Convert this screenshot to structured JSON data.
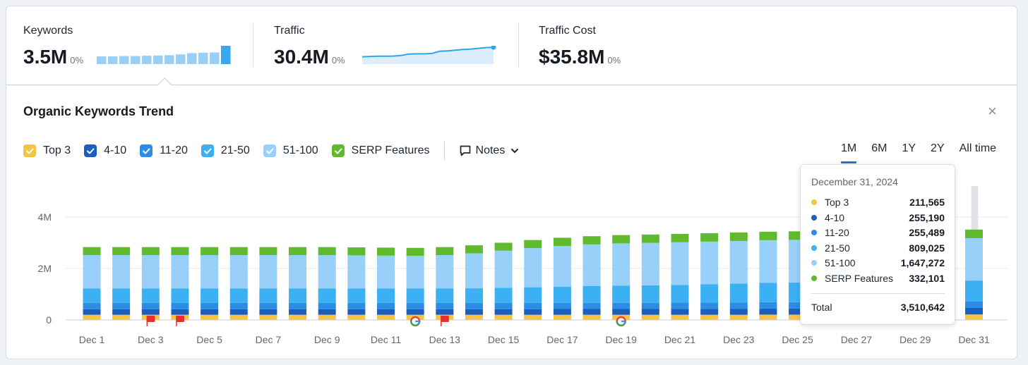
{
  "metrics": [
    {
      "label": "Keywords",
      "value": "3.5M",
      "change": "0%"
    },
    {
      "label": "Traffic",
      "value": "30.4M",
      "change": "0%"
    },
    {
      "label": "Traffic Cost",
      "value": "$35.8M",
      "change": "0%"
    }
  ],
  "section_title": "Organic Keywords Trend",
  "close_glyph": "×",
  "legend": [
    {
      "label": "Top 3",
      "color": "#f6c443"
    },
    {
      "label": "4-10",
      "color": "#1a5fbf"
    },
    {
      "label": "11-20",
      "color": "#2d8ce6"
    },
    {
      "label": "21-50",
      "color": "#3bb0f2"
    },
    {
      "label": "51-100",
      "color": "#99d0fa"
    },
    {
      "label": "SERP Features",
      "color": "#5fba2e"
    }
  ],
  "notes_label": "Notes",
  "periods": [
    "1M",
    "6M",
    "1Y",
    "2Y",
    "All time"
  ],
  "active_period": "1M",
  "tooltip": {
    "date": "December 31, 2024",
    "rows": [
      {
        "label": "Top 3",
        "value": "211,565",
        "color": "#f6c443"
      },
      {
        "label": "4-10",
        "value": "255,190",
        "color": "#1a5fbf"
      },
      {
        "label": "11-20",
        "value": "255,489",
        "color": "#2d8ce6"
      },
      {
        "label": "21-50",
        "value": "809,025",
        "color": "#3bb0f2"
      },
      {
        "label": "51-100",
        "value": "1,647,272",
        "color": "#99d0fa"
      },
      {
        "label": "SERP Features",
        "value": "332,101",
        "color": "#5fba2e"
      }
    ],
    "total_label": "Total",
    "total_value": "3,510,642"
  },
  "chart_data": {
    "type": "bar",
    "stacked": true,
    "x": [
      "Dec 1",
      "Dec 2",
      "Dec 3",
      "Dec 4",
      "Dec 5",
      "Dec 6",
      "Dec 7",
      "Dec 8",
      "Dec 9",
      "Dec 10",
      "Dec 11",
      "Dec 12",
      "Dec 13",
      "Dec 14",
      "Dec 15",
      "Dec 16",
      "Dec 17",
      "Dec 18",
      "Dec 19",
      "Dec 20",
      "Dec 21",
      "Dec 22",
      "Dec 23",
      "Dec 24",
      "Dec 25",
      "Dec 26",
      "Dec 27",
      "Dec 28",
      "Dec 29",
      "Dec 30",
      "Dec 31"
    ],
    "x_tick_labels": [
      "Dec 1",
      "Dec 3",
      "Dec 5",
      "Dec 7",
      "Dec 9",
      "Dec 11",
      "Dec 13",
      "Dec 15",
      "Dec 17",
      "Dec 19",
      "Dec 21",
      "Dec 23",
      "Dec 25",
      "Dec 27",
      "Dec 29",
      "Dec 31"
    ],
    "y_tick_labels": [
      "0",
      "2M",
      "4M"
    ],
    "ylim": [
      0,
      4000000
    ],
    "grid": true,
    "series": [
      {
        "name": "Top 3",
        "color": "#f6c443",
        "values": [
          200000,
          200000,
          200000,
          200000,
          200000,
          200000,
          200000,
          200000,
          200000,
          200000,
          200000,
          200000,
          200000,
          200000,
          200000,
          200000,
          200000,
          200000,
          200000,
          200000,
          200000,
          200000,
          200000,
          205000,
          205000,
          205000,
          205000,
          208000,
          210000,
          210000,
          211565
        ]
      },
      {
        "name": "4-10",
        "color": "#1a5fbf",
        "values": [
          220000,
          220000,
          220000,
          220000,
          220000,
          220000,
          220000,
          220000,
          220000,
          220000,
          220000,
          220000,
          220000,
          220000,
          220000,
          220000,
          225000,
          225000,
          225000,
          225000,
          230000,
          230000,
          235000,
          240000,
          240000,
          245000,
          245000,
          250000,
          250000,
          252000,
          255190
        ]
      },
      {
        "name": "11-20",
        "color": "#2d8ce6",
        "values": [
          240000,
          240000,
          240000,
          240000,
          240000,
          240000,
          240000,
          240000,
          240000,
          240000,
          240000,
          240000,
          240000,
          240000,
          240000,
          240000,
          240000,
          240000,
          240000,
          240000,
          240000,
          245000,
          245000,
          245000,
          248000,
          250000,
          250000,
          252000,
          252000,
          253000,
          255489
        ]
      },
      {
        "name": "21-50",
        "color": "#3bb0f2",
        "values": [
          560000,
          560000,
          560000,
          560000,
          560000,
          560000,
          560000,
          560000,
          560000,
          560000,
          560000,
          560000,
          560000,
          570000,
          590000,
          610000,
          630000,
          650000,
          670000,
          680000,
          690000,
          710000,
          730000,
          750000,
          760000,
          770000,
          780000,
          790000,
          800000,
          805000,
          809025
        ]
      },
      {
        "name": "51-100",
        "color": "#99d0fa",
        "values": [
          1300000,
          1300000,
          1300000,
          1300000,
          1300000,
          1300000,
          1300000,
          1300000,
          1300000,
          1290000,
          1280000,
          1270000,
          1300000,
          1360000,
          1440000,
          1520000,
          1580000,
          1620000,
          1640000,
          1650000,
          1660000,
          1660000,
          1660000,
          1660000,
          1660000,
          1655000,
          1655000,
          1650000,
          1650000,
          1648000,
          1647272
        ]
      },
      {
        "name": "SERP Features",
        "color": "#5fba2e",
        "values": [
          310000,
          310000,
          310000,
          310000,
          310000,
          310000,
          310000,
          310000,
          310000,
          310000,
          310000,
          310000,
          310000,
          310000,
          310000,
          315000,
          318000,
          320000,
          322000,
          325000,
          325000,
          328000,
          330000,
          330000,
          330000,
          330000,
          331000,
          331000,
          332000,
          332000,
          332101
        ]
      }
    ],
    "event_markers": [
      {
        "x": "Dec 3",
        "kind": "flag"
      },
      {
        "x": "Dec 4",
        "kind": "flag"
      },
      {
        "x": "Dec 12",
        "kind": "google"
      },
      {
        "x": "Dec 13",
        "kind": "flag"
      },
      {
        "x": "Dec 19",
        "kind": "google"
      }
    ],
    "highlighted_x": "Dec 31"
  },
  "sparklines": {
    "keywords_bars": [
      0.42,
      0.42,
      0.44,
      0.44,
      0.46,
      0.47,
      0.49,
      0.53,
      0.6,
      0.62,
      0.64,
      1.0
    ],
    "traffic_line": [
      0.4,
      0.42,
      0.43,
      0.43,
      0.44,
      0.47,
      0.55,
      0.56,
      0.56,
      0.58,
      0.7,
      0.72,
      0.76,
      0.8,
      0.82,
      0.86,
      0.9,
      0.92
    ]
  }
}
